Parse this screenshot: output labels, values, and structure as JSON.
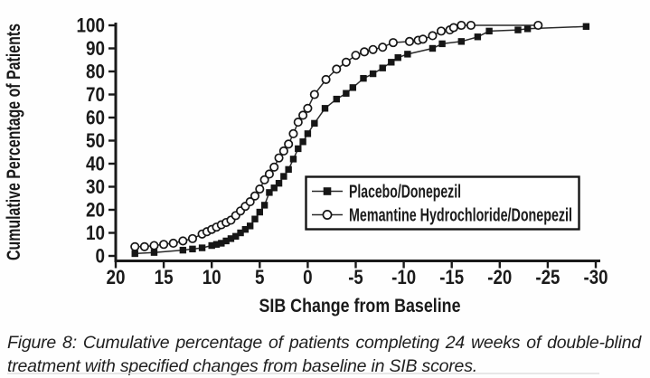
{
  "figure": {
    "caption": "Figure 8: Cumulative percentage of patients completing 24 weeks of double-blind treatment with specified changes from baseline in SIB scores."
  },
  "colors": {
    "text": "#1a1a1a",
    "line": "#1a1a1a",
    "background": "#ffffff",
    "marker_fill": "#161616",
    "circle_fill": "#ffffff"
  },
  "chart_data": {
    "type": "line",
    "title": "",
    "xlabel": "SIB Change from Baseline",
    "ylabel": "Cumulative Percentage of Patients",
    "x_axis_reversed": true,
    "xlim": [
      20,
      -30
    ],
    "ylim": [
      0,
      100
    ],
    "x_ticks": [
      20,
      15,
      10,
      5,
      0,
      -5,
      -10,
      -15,
      -20,
      -25,
      -30
    ],
    "y_ticks": [
      0,
      10,
      20,
      30,
      40,
      50,
      60,
      70,
      80,
      90,
      100
    ],
    "grid": false,
    "legend_position": "inside-right-middle",
    "series": [
      {
        "name": "Placebo/Donepezil",
        "marker": "filled-square",
        "color": "#161616",
        "points": [
          [
            18,
            1
          ],
          [
            16,
            1.5
          ],
          [
            13,
            2.5
          ],
          [
            12,
            3
          ],
          [
            11,
            3.5
          ],
          [
            10,
            4.5
          ],
          [
            9.5,
            5
          ],
          [
            9,
            5.5
          ],
          [
            8.5,
            6.5
          ],
          [
            8,
            7.5
          ],
          [
            7.5,
            8.5
          ],
          [
            7,
            10
          ],
          [
            6.5,
            11.5
          ],
          [
            6,
            13
          ],
          [
            5.5,
            16
          ],
          [
            5,
            19
          ],
          [
            4.5,
            22
          ],
          [
            4,
            27.5
          ],
          [
            3.5,
            29.5
          ],
          [
            3,
            31.5
          ],
          [
            2.5,
            34.5
          ],
          [
            2,
            37.5
          ],
          [
            1.5,
            42
          ],
          [
            1,
            46.5
          ],
          [
            0.5,
            49.5
          ],
          [
            0,
            53
          ],
          [
            -0.7,
            57.5
          ],
          [
            -1.8,
            64
          ],
          [
            -3,
            68
          ],
          [
            -4,
            70.5
          ],
          [
            -4.7,
            73
          ],
          [
            -5.8,
            77
          ],
          [
            -6.8,
            79
          ],
          [
            -7.8,
            81.5
          ],
          [
            -8.7,
            84
          ],
          [
            -9.4,
            86
          ],
          [
            -10.4,
            87.5
          ],
          [
            -13,
            90
          ],
          [
            -14,
            92
          ],
          [
            -16,
            93
          ],
          [
            -17.7,
            95
          ],
          [
            -18.9,
            97.5
          ],
          [
            -21.9,
            98
          ],
          [
            -22.9,
            98.5
          ],
          [
            -29,
            99.5
          ]
        ]
      },
      {
        "name": "Memantine Hydrochloride/Donepezil",
        "marker": "open-circle",
        "color": "#161616",
        "points": [
          [
            18,
            4
          ],
          [
            17,
            4
          ],
          [
            16,
            4.5
          ],
          [
            15,
            5
          ],
          [
            14,
            5.5
          ],
          [
            13,
            6.5
          ],
          [
            12,
            7.5
          ],
          [
            11,
            9.5
          ],
          [
            10.5,
            10.5
          ],
          [
            10,
            11.5
          ],
          [
            9.5,
            12.5
          ],
          [
            9,
            13.5
          ],
          [
            8.5,
            14.5
          ],
          [
            8,
            15.5
          ],
          [
            7.5,
            17.5
          ],
          [
            7,
            19.5
          ],
          [
            6.5,
            21.5
          ],
          [
            6,
            23.5
          ],
          [
            5.5,
            26
          ],
          [
            5,
            29
          ],
          [
            4.5,
            33
          ],
          [
            4,
            35.5
          ],
          [
            3.5,
            38.5
          ],
          [
            3,
            42.5
          ],
          [
            2.5,
            45.5
          ],
          [
            2,
            48.5
          ],
          [
            1.5,
            53
          ],
          [
            1,
            58
          ],
          [
            0.5,
            61
          ],
          [
            0,
            64
          ],
          [
            -0.7,
            70
          ],
          [
            -1.9,
            76.5
          ],
          [
            -3,
            81
          ],
          [
            -4,
            84
          ],
          [
            -5,
            87
          ],
          [
            -5.9,
            88.5
          ],
          [
            -6.8,
            89.5
          ],
          [
            -7.8,
            90.5
          ],
          [
            -8.9,
            92.5
          ],
          [
            -10.6,
            93
          ],
          [
            -11.5,
            93.5
          ],
          [
            -12,
            94
          ],
          [
            -13,
            95.5
          ],
          [
            -13.9,
            97.5
          ],
          [
            -14.8,
            98
          ],
          [
            -15.2,
            99
          ],
          [
            -16,
            100
          ],
          [
            -17,
            100
          ],
          [
            -24,
            100
          ]
        ]
      }
    ]
  }
}
